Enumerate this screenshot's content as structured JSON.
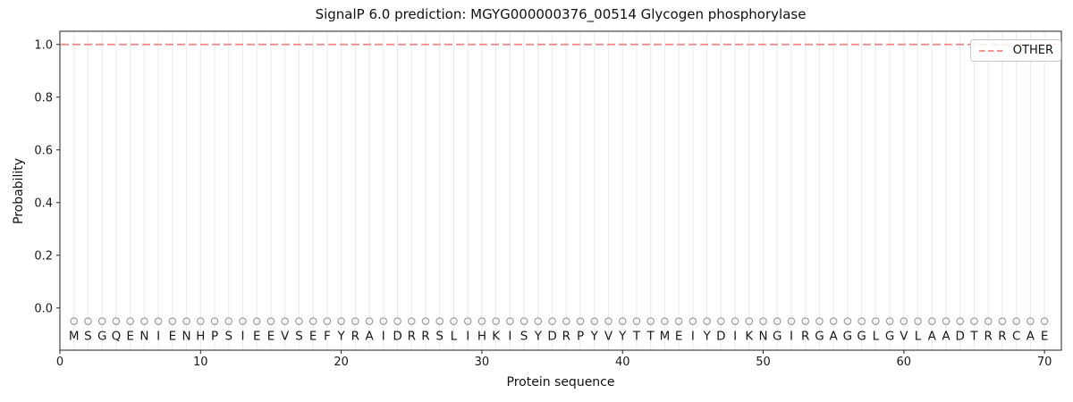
{
  "chart_data": {
    "type": "line",
    "title": "SignalP 6.0 prediction: MGYG000000376_00514 Glycogen phosphorylase",
    "xlabel": "Protein sequence",
    "ylabel": "Probability",
    "xlim": [
      0,
      71.2
    ],
    "ylim": [
      -0.16,
      1.05
    ],
    "x_ticks": [
      0,
      10,
      20,
      30,
      40,
      50,
      60,
      70
    ],
    "y_ticks": [
      {
        "value": 0.0,
        "label": "0.0"
      },
      {
        "value": 0.2,
        "label": "0.2"
      },
      {
        "value": 0.4,
        "label": "0.4"
      },
      {
        "value": 0.6,
        "label": "0.6"
      },
      {
        "value": 0.8,
        "label": "0.8"
      },
      {
        "value": 1.0,
        "label": "1.0"
      }
    ],
    "grid": {
      "vertical_line_per_residue": true,
      "color": "#ededed"
    },
    "sequence": "MSGQENIENHPSIEEVSEFYRAIDRRSLIHKISYDRPYVYTTMEIYDIKNGIRGAGGLGVLAADTRRCAE",
    "sequence_length": 70,
    "series": [
      {
        "name": "OTHER",
        "style": "dashed",
        "color": "#ee8888",
        "x_start": 1,
        "x_end": 70,
        "values": [
          1.0,
          1.0,
          1.0,
          1.0,
          1.0,
          1.0,
          1.0,
          1.0,
          1.0,
          1.0,
          1.0,
          1.0,
          1.0,
          1.0,
          1.0,
          1.0,
          1.0,
          1.0,
          1.0,
          1.0,
          1.0,
          1.0,
          1.0,
          1.0,
          1.0,
          1.0,
          1.0,
          1.0,
          1.0,
          1.0,
          1.0,
          1.0,
          1.0,
          1.0,
          1.0,
          1.0,
          1.0,
          1.0,
          1.0,
          1.0,
          1.0,
          1.0,
          1.0,
          1.0,
          1.0,
          1.0,
          1.0,
          1.0,
          1.0,
          1.0,
          1.0,
          1.0,
          1.0,
          1.0,
          1.0,
          1.0,
          1.0,
          1.0,
          1.0,
          1.0,
          1.0,
          1.0,
          1.0,
          1.0,
          1.0,
          1.0,
          1.0,
          1.0,
          1.0,
          1.0
        ]
      }
    ],
    "legend": {
      "location": "upper right",
      "entries": [
        {
          "label": "OTHER",
          "color": "#ee8888",
          "style": "dashed"
        }
      ]
    },
    "marker_row": {
      "shape": "circle",
      "y": -0.05,
      "stroke": "#9c9c9c"
    },
    "residue_letter_y": -0.105
  },
  "colors": {
    "background": "#ffffff",
    "line_other": "#ee8888",
    "grid": "#ededed",
    "marker": "#9c9c9c",
    "text": "#1a1a1a",
    "spine": "#222222",
    "legend_border": "#c9c9c9"
  }
}
